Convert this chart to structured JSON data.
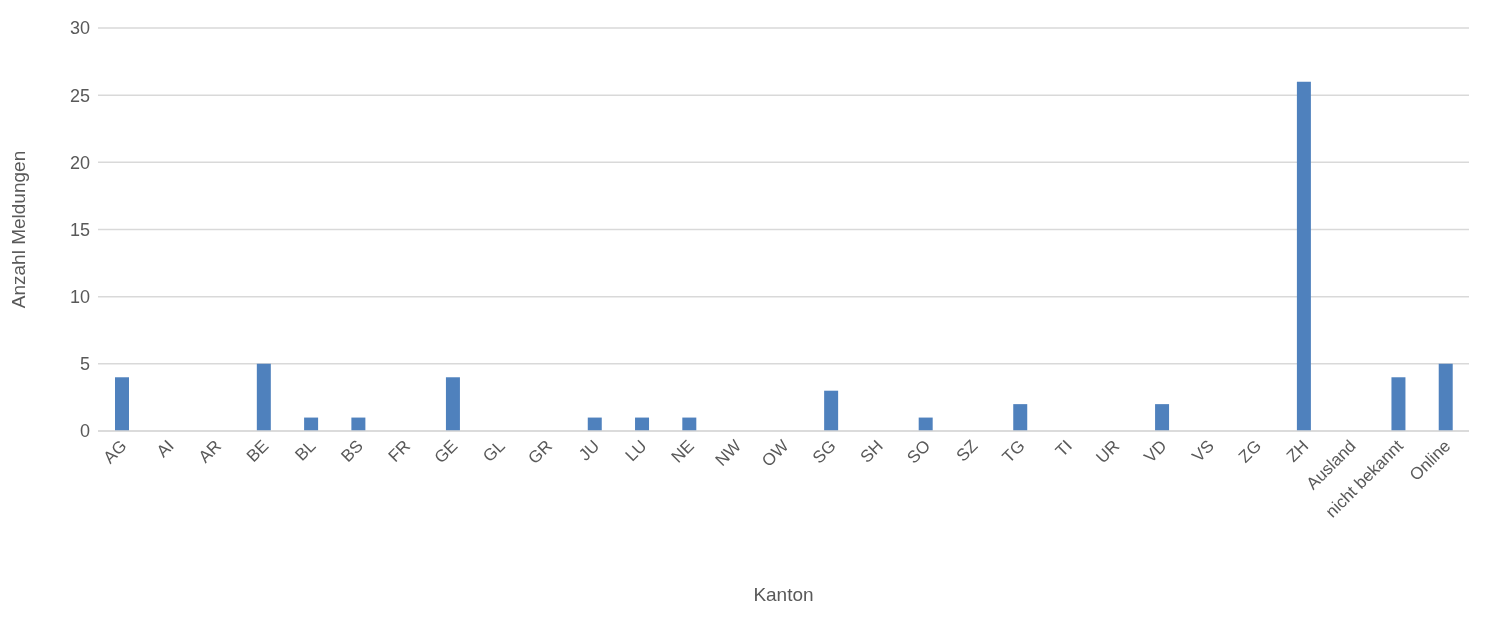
{
  "chart_data": {
    "type": "bar",
    "xlabel": "Kanton",
    "ylabel": "Anzahl Meldungen",
    "categories": [
      "AG",
      "AI",
      "AR",
      "BE",
      "BL",
      "BS",
      "FR",
      "GE",
      "GL",
      "GR",
      "JU",
      "LU",
      "NE",
      "NW",
      "OW",
      "SG",
      "SH",
      "SO",
      "SZ",
      "TG",
      "TI",
      "UR",
      "VD",
      "VS",
      "ZG",
      "ZH",
      "Ausland",
      "nicht bekannt",
      "Online"
    ],
    "values": [
      4,
      0,
      0,
      5,
      1,
      1,
      0,
      4,
      0,
      0,
      1,
      1,
      1,
      0,
      0,
      3,
      0,
      1,
      0,
      2,
      0,
      0,
      2,
      0,
      0,
      26,
      0,
      4,
      5
    ],
    "color": "#4f81bd",
    "ylim": [
      0,
      30
    ],
    "yticks": [
      0,
      5,
      10,
      15,
      20,
      25,
      30
    ],
    "grid": "y"
  }
}
